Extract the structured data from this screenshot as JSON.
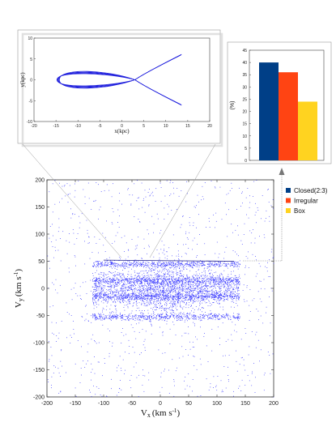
{
  "chart_data": [
    {
      "type": "line",
      "panel": "inset-orbit",
      "xlabel": "x(kpc)",
      "ylabel": "y(kpc)",
      "xlim": [
        -20,
        20
      ],
      "ylim": [
        -10,
        10
      ],
      "xticks": [
        -20,
        -15,
        -10,
        -5,
        0,
        5,
        10,
        15,
        20
      ],
      "yticks": [
        -10,
        -5,
        0,
        5,
        10
      ],
      "color": "#2222dd",
      "orbit": {
        "left_extent": -14.5,
        "crossing_x": 3.0,
        "right_x": 13.5,
        "right_y": 6.0,
        "loop_halfwidth_y": 2.2
      }
    },
    {
      "type": "bar",
      "panel": "inset-fractions",
      "ylabel": "(%)",
      "ylim": [
        0,
        45
      ],
      "yticks": [
        0,
        5,
        10,
        15,
        20,
        25,
        30,
        35,
        40,
        45
      ],
      "categories": [
        "Closed(2:3)",
        "Irregular",
        "Box"
      ],
      "values": [
        40,
        36,
        24
      ],
      "colors": [
        "#003f87",
        "#ff4413",
        "#ffd320"
      ]
    },
    {
      "type": "scatter",
      "panel": "main-velocity",
      "xlabel": "V",
      "xlabel_sub": "x",
      "xlabel_unit": "(km s",
      "xlabel_exp": "-1",
      "ylabel": "V",
      "ylabel_sub": "y",
      "ylabel_unit": "(km s",
      "ylabel_exp": "-1",
      "xlim": [
        -200,
        200
      ],
      "ylim": [
        -200,
        200
      ],
      "xticks": [
        -200,
        -150,
        -100,
        -50,
        0,
        50,
        100,
        150,
        200
      ],
      "yticks": [
        -200,
        -150,
        -100,
        -50,
        0,
        50,
        100,
        150,
        200
      ],
      "color": "#3333ff",
      "highlight_vy": 52,
      "highlight_vx_range": [
        -100,
        130
      ],
      "density_bands_vy": [
        45,
        15,
        -15,
        -52
      ],
      "core_vx_range": [
        -120,
        140
      ]
    }
  ]
}
